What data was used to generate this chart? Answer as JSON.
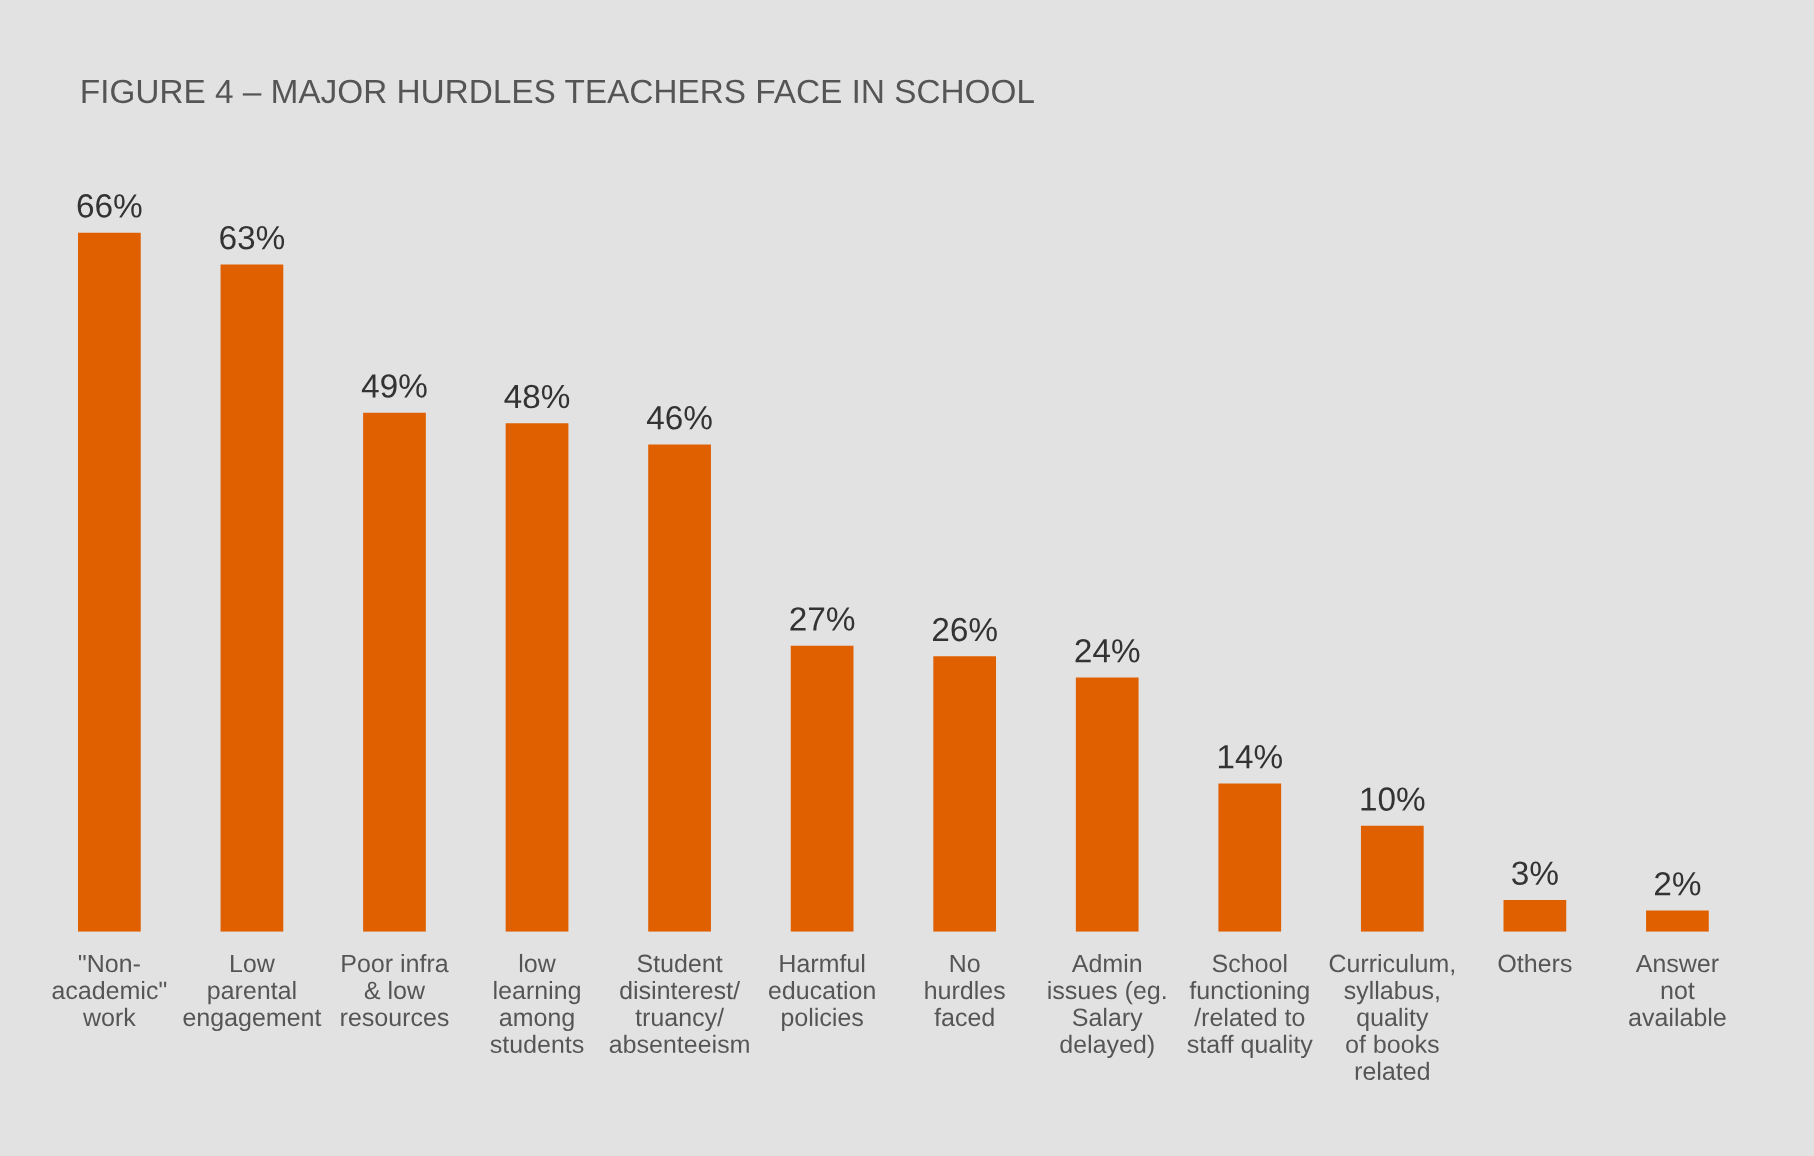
{
  "chart_data": {
    "type": "bar",
    "title": "FIGURE 4 – MAJOR HURDLES TEACHERS FACE IN SCHOOL",
    "categories": [
      "\"Non-\nacademic\"\nwork",
      "Low\nparental\nengagement",
      "Poor infra\n& low\nresources",
      "low\nlearning\namong\nstudents",
      "Student\ndisinterest/\ntruancy/\nabsenteeism",
      "Harmful\neducation\npolicies",
      "No\nhurdles\nfaced",
      "Admin\nissues (eg.\nSalary\ndelayed)",
      "School\nfunctioning\n/related to\nstaff quality",
      "Curriculum,\nsyllabus,\nquality\nof books\nrelated",
      "Others",
      "Answer\nnot\navailable"
    ],
    "values": [
      66,
      63,
      49,
      48,
      46,
      27,
      26,
      24,
      14,
      10,
      3,
      2
    ],
    "value_labels": [
      "66%",
      "63%",
      "49%",
      "48%",
      "46%",
      "27%",
      "26%",
      "24%",
      "14%",
      "10%",
      "3%",
      "2%"
    ],
    "color": "#e06000",
    "tick_labels": "x",
    "grid": false,
    "legend": false
  }
}
